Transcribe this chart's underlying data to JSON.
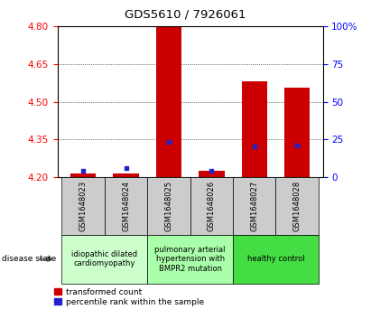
{
  "title": "GDS5610 / 7926061",
  "samples": [
    "GSM1648023",
    "GSM1648024",
    "GSM1648025",
    "GSM1648026",
    "GSM1648027",
    "GSM1648028"
  ],
  "red_values": [
    4.215,
    4.215,
    4.8,
    4.225,
    4.58,
    4.555
  ],
  "blue_values": [
    4.226,
    4.235,
    4.34,
    4.226,
    4.323,
    4.326
  ],
  "ymin": 4.2,
  "ymax": 4.8,
  "yticks_left": [
    4.2,
    4.35,
    4.5,
    4.65,
    4.8
  ],
  "yticks_right_vals": [
    4.2,
    4.35,
    4.5,
    4.65,
    4.8
  ],
  "yticks_right_labels": [
    "0",
    "25",
    "50",
    "75",
    "100%"
  ],
  "bar_color": "#cc0000",
  "blue_color": "#2222cc",
  "base_value": 4.2,
  "legend_red": "transformed count",
  "legend_blue": "percentile rank within the sample",
  "group_info": [
    {
      "spans": [
        0,
        1
      ],
      "label": "idiopathic dilated\ncardiomyopathy",
      "color": "#ccffcc"
    },
    {
      "spans": [
        2,
        3
      ],
      "label": "pulmonary arterial\nhypertension with\nBMPR2 mutation",
      "color": "#aaffaa"
    },
    {
      "spans": [
        4,
        5
      ],
      "label": "healthy control",
      "color": "#44dd44"
    }
  ]
}
